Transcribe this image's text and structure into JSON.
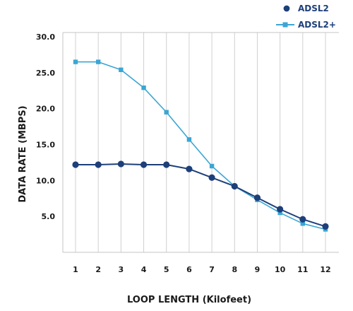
{
  "chart_data": {
    "type": "line",
    "title": "",
    "xlabel": "LOOP LENGTH (Kilofeet)",
    "ylabel": "DATA RATE (MBPS)",
    "x_ticks": [
      "1",
      "2",
      "3",
      "4",
      "5",
      "6",
      "7",
      "8",
      "9",
      "10",
      "11",
      "12"
    ],
    "y_ticks": [
      "5.0",
      "10.0",
      "15.0",
      "20.0",
      "25.0",
      "30.0"
    ],
    "ylim": [
      0,
      30
    ],
    "grid": "vertical",
    "legend_position": "top-right",
    "series": [
      {
        "name": "ADSL2",
        "color": "#1d3f7a",
        "marker": "circle",
        "points": [
          {
            "x": 1,
            "y": 12.2
          },
          {
            "x": 2,
            "y": 12.2
          },
          {
            "x": 3,
            "y": 12.3
          },
          {
            "x": 4,
            "y": 12.2
          },
          {
            "x": 5,
            "y": 12.2
          },
          {
            "x": 6,
            "y": 11.6
          },
          {
            "x": 7,
            "y": 10.4
          },
          {
            "x": 8,
            "y": 9.2
          },
          {
            "x": 9,
            "y": 7.6
          },
          {
            "x": 10,
            "y": 6.0
          },
          {
            "x": 11,
            "y": 4.6
          },
          {
            "x": 12,
            "y": 3.6
          }
        ]
      },
      {
        "name": "ADSL2+",
        "color": "#3aa6d4",
        "marker": "square",
        "points": [
          {
            "x": 1,
            "y": 26.5
          },
          {
            "x": 2,
            "y": 26.5
          },
          {
            "x": 3,
            "y": 25.4
          },
          {
            "x": 4,
            "y": 22.9
          },
          {
            "x": 5,
            "y": 19.5
          },
          {
            "x": 6,
            "y": 15.7
          },
          {
            "x": 7,
            "y": 12.0
          },
          {
            "x": 8,
            "y": 9.2
          },
          {
            "x": 9,
            "y": 7.3
          },
          {
            "x": 10,
            "y": 5.5
          },
          {
            "x": 11,
            "y": 4.0
          },
          {
            "x": 12,
            "y": 3.2
          }
        ]
      }
    ]
  }
}
